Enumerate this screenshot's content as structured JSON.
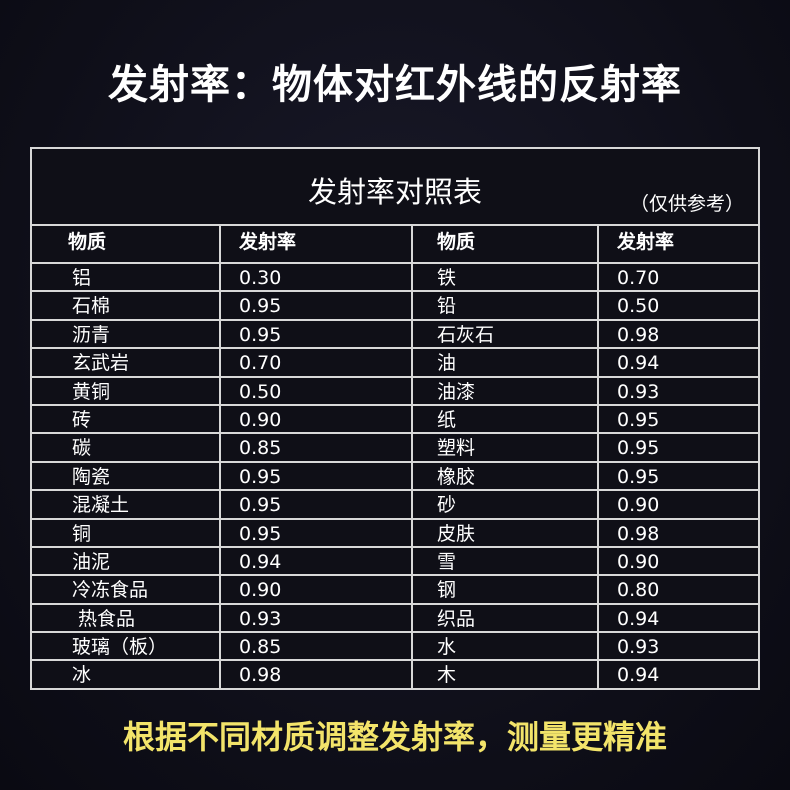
{
  "title": "发射率：物体对红外线的反射率",
  "table": {
    "caption": "发射率对照表",
    "note": "（仅供参考）",
    "headers": [
      "物质",
      "发射率",
      "物质",
      "发射率"
    ],
    "rows": [
      [
        "铝",
        "0.30",
        "铁",
        "0.70"
      ],
      [
        "石棉",
        "0.95",
        "铅",
        "0.50"
      ],
      [
        "沥青",
        "0.95",
        "石灰石",
        "0.98"
      ],
      [
        "玄武岩",
        "0.70",
        "油",
        "0.94"
      ],
      [
        "黄铜",
        "0.50",
        "油漆",
        "0.93"
      ],
      [
        "砖",
        "0.90",
        "纸",
        "0.95"
      ],
      [
        "碳",
        "0.85",
        "塑料",
        "0.95"
      ],
      [
        "陶瓷",
        "0.95",
        "橡胶",
        "0.95"
      ],
      [
        "混凝土",
        "0.95",
        "砂",
        "0.90"
      ],
      [
        "铜",
        "0.95",
        "皮肤",
        "0.98"
      ],
      [
        "油泥",
        "0.94",
        "雪",
        "0.90"
      ],
      [
        "冷冻食品",
        "0.90",
        "钢",
        "0.80"
      ],
      [
        " 热食品",
        "0.93",
        "织品",
        "0.94"
      ],
      [
        "玻璃（板）",
        "0.85",
        "水",
        "0.93"
      ],
      [
        "冰",
        "0.98",
        "木",
        "0.94"
      ]
    ]
  },
  "footer": "根据不同材质调整发射率，测量更精准",
  "colors": {
    "background": "#0e0e18",
    "footer_text": "#f3e46a",
    "grid_lines": "#d8d8d8"
  }
}
